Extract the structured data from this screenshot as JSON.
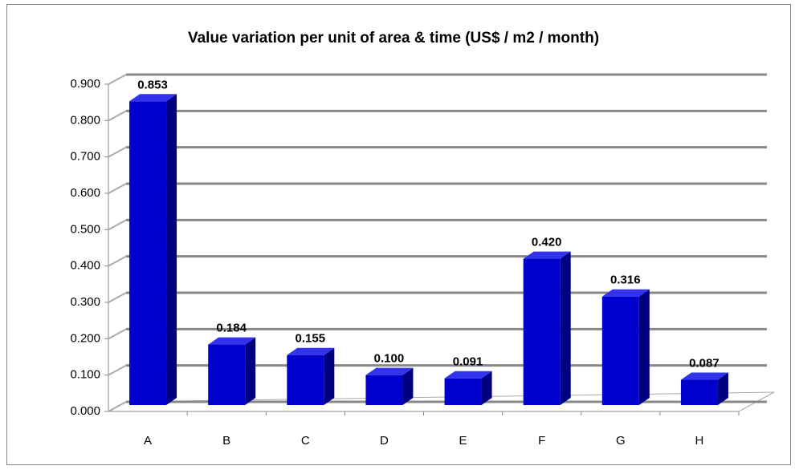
{
  "chart_data": {
    "type": "bar3d",
    "title": "Value variation per unit of  area & time (US$ / m2 / month)",
    "categories": [
      "A",
      "B",
      "C",
      "D",
      "E",
      "F",
      "G",
      "H"
    ],
    "values": [
      0.853,
      0.184,
      0.155,
      0.1,
      0.091,
      0.42,
      0.316,
      0.087
    ],
    "value_labels": [
      "0.853",
      "0.184",
      "0.155",
      "0.100",
      "0.091",
      "0.420",
      "0.316",
      "0.087"
    ],
    "color": "#0000cc",
    "ylim": [
      0,
      0.9
    ],
    "yticks": [
      {
        "value": 0,
        "label": "0.000"
      },
      {
        "value": 0.1,
        "label": "0.100"
      },
      {
        "value": 0.2,
        "label": "0.200"
      },
      {
        "value": 0.3,
        "label": "0.300"
      },
      {
        "value": 0.4,
        "label": "0.400"
      },
      {
        "value": 0.5,
        "label": "0.500"
      },
      {
        "value": 0.6,
        "label": "0.600"
      },
      {
        "value": 0.7,
        "label": "0.700"
      },
      {
        "value": 0.8,
        "label": "0.800"
      },
      {
        "value": 0.9,
        "label": "0.900"
      }
    ],
    "grid": true
  }
}
